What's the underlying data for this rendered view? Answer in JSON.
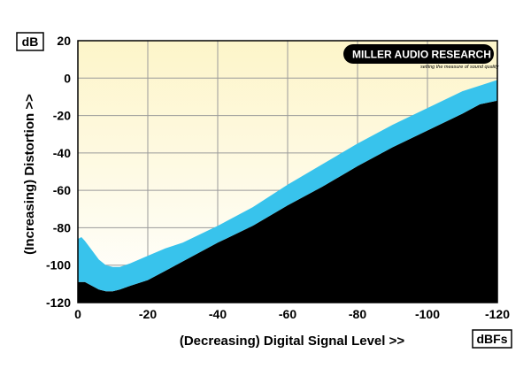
{
  "chart_data": {
    "type": "area",
    "xlabel": "(Decreasing) Digital Signal Level >>",
    "ylabel": "(Increasing) Distortion >>",
    "x_unit": "dBFs",
    "y_unit": "dB",
    "xlim": [
      0,
      -120
    ],
    "ylim": [
      -120,
      20
    ],
    "x_ticks": [
      "0",
      "-20",
      "-40",
      "-60",
      "-80",
      "-100",
      "-120"
    ],
    "y_ticks": [
      "20",
      "0",
      "-20",
      "-40",
      "-60",
      "-80",
      "-100",
      "-120"
    ],
    "grid": true,
    "series": [
      {
        "x": [
          0,
          -1,
          -2,
          -4,
          -6,
          -8,
          -10,
          -12,
          -15,
          -20,
          -25,
          -30,
          -40,
          -50,
          -60,
          -70,
          -80,
          -90,
          -100,
          -110,
          -115,
          -120
        ],
        "y_upper": [
          -86,
          -85,
          -87,
          -92,
          -97,
          -100,
          -101,
          -101,
          -99,
          -95,
          -91,
          -88,
          -79,
          -69,
          -57,
          -46,
          -35,
          -25,
          -16,
          -7,
          -4,
          -1
        ],
        "y_lower": [
          -109,
          -109,
          -109,
          -111,
          -113,
          -114,
          -114,
          -113,
          -111,
          -108,
          -103,
          -98,
          -88,
          -79,
          -68,
          -58,
          -47,
          -37,
          -28,
          -19,
          -14,
          -12
        ],
        "band_color": "#38c3ec",
        "fill_below_color": "#000000"
      }
    ],
    "background_gradient": [
      "#fdf5c9",
      "#ffffff"
    ]
  },
  "logo": {
    "main": "MILLER AUDIO RESEARCH",
    "tagline": "setting the measure of sound quality"
  }
}
